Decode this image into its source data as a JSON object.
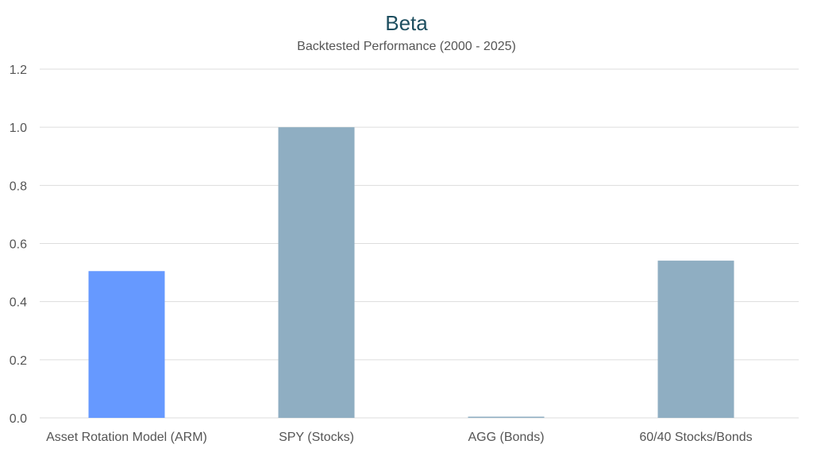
{
  "chart_data": {
    "type": "bar",
    "title": "Beta",
    "subtitle": "Backtested Performance (2000 - 2025)",
    "xlabel": "",
    "ylabel": "",
    "categories": [
      "Asset Rotation Model (ARM)",
      "SPY (Stocks)",
      "AGG (Bonds)",
      "60/40 Stocks/Bonds"
    ],
    "values": [
      0.505,
      1.0,
      0.002,
      0.541
    ],
    "colors": [
      "#6699ff",
      "#8faec2",
      "#8faec2",
      "#8faec2"
    ],
    "ylim": [
      0,
      1.2
    ],
    "yticks": [
      "0.0",
      "0.2",
      "0.4",
      "0.6",
      "0.8",
      "1.0",
      "1.2"
    ],
    "grid": true,
    "legend": "none",
    "title_color": "#1d4e5f",
    "text_color": "#555555",
    "grid_color": "#dddddd"
  }
}
